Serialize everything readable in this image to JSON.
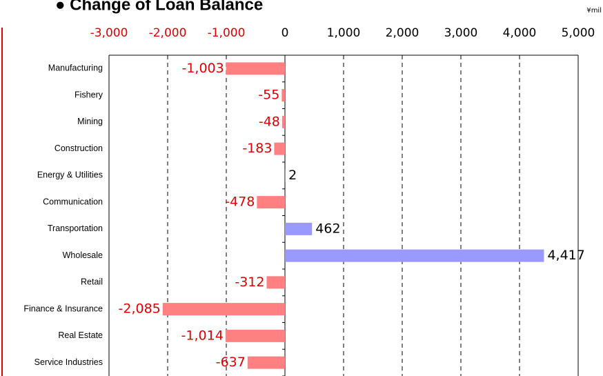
{
  "chart_data": {
    "type": "bar",
    "orientation": "horizontal",
    "title": "● Change of Loan Balance",
    "unit": "¥mil",
    "categories": [
      "Manufacturing",
      "Fishery",
      "Mining",
      "Construction",
      "Energy & Utilities",
      "Communication",
      "Transportation",
      "Wholesale",
      "Retail",
      "Finance & Insurance",
      "Real Estate",
      "Service Industries"
    ],
    "values": [
      -1003,
      -55,
      -48,
      -183,
      2,
      -478,
      462,
      4417,
      -312,
      -2085,
      -1014,
      -637
    ],
    "value_labels": [
      "-1,003",
      "-55",
      "-48",
      "-183",
      "2",
      "-478",
      "462",
      "4,417",
      "-312",
      "-2,085",
      "-1,014",
      "-637"
    ],
    "positive_color": "#9999ff",
    "negative_color": "#ff8080",
    "xlim": [
      -3000,
      5000
    ],
    "xticks": [
      {
        "value": -3000,
        "label": "-3,000"
      },
      {
        "value": -2000,
        "label": "-2,000"
      },
      {
        "value": -1000,
        "label": "-1,000"
      },
      0,
      {
        "value": 1000,
        "label": "1,000"
      },
      {
        "value": 2000,
        "label": "2,000"
      },
      {
        "value": 3000,
        "label": "3,000"
      },
      {
        "value": 4000,
        "label": "4,000"
      },
      {
        "value": 5000,
        "label": "5,000"
      }
    ],
    "grid": true
  }
}
